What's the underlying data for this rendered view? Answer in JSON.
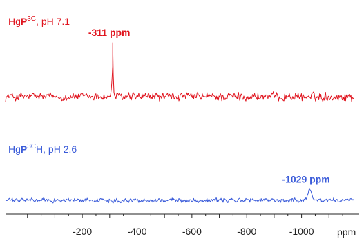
{
  "chart_data": {
    "type": "line",
    "xlabel": "ppm",
    "xlim": [
      80,
      -1190
    ],
    "x_reversed": true,
    "x_ticks": [
      -200,
      -400,
      -600,
      -800,
      -1000
    ],
    "x_tick_labels": [
      "-200",
      "-400",
      "-600",
      "-800",
      "-1000"
    ],
    "grid": false,
    "series": [
      {
        "label_prefix": "Hg",
        "label_bold": "P",
        "label_sup": "3C",
        "label_suffix": ", pH 7.1",
        "color": "#e0141e",
        "noise_amplitude": 0.18,
        "peaks": [
          {
            "x": -311,
            "height": 1.0,
            "width": 4,
            "label": "-311 ppm"
          }
        ]
      },
      {
        "label_prefix": "Hg",
        "label_bold": "P",
        "label_sup": "3C",
        "label_suffix": "H, pH 2.6",
        "color": "#3a5bd9",
        "noise_amplitude": 0.12,
        "peaks": [
          {
            "x": -1029,
            "height": 0.55,
            "width": 10,
            "label": "-1029 ppm"
          }
        ]
      }
    ]
  }
}
